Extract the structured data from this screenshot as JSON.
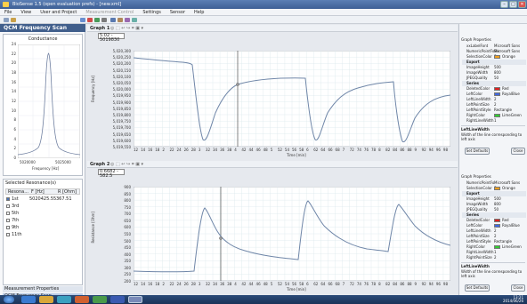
{
  "window": {
    "title": "BioSense 1.5 (open evaluation prefs) - [new.xml]",
    "minimize": "–",
    "maximize": "□",
    "close": "✕"
  },
  "menu": [
    "File",
    "View",
    "User and Project",
    "Measurement Control",
    "Settings",
    "Sensor",
    "Help"
  ],
  "left": {
    "header": "QCM Frequency Scan",
    "conductance_title": "Conductance",
    "cond_x_label": "Frequency [Hz]",
    "cond_x_ticks": [
      "5020000",
      "5025000"
    ],
    "cond_y_ticks": [
      "24",
      "22",
      "20",
      "18",
      "16",
      "14",
      "12",
      "10",
      "8",
      "6",
      "4",
      "2",
      "0"
    ],
    "resonance_title": "Selected Resonance(s)",
    "res_columns": [
      "Resona...",
      "F [Hz]",
      "R [Ohm]"
    ],
    "res_rows": [
      {
        "name": "1st",
        "f": "5020425.55",
        "r": "367.51",
        "checked": true
      },
      {
        "name": "3rd",
        "f": "",
        "r": "",
        "checked": false
      },
      {
        "name": "5th",
        "f": "",
        "r": "",
        "checked": false
      },
      {
        "name": "7th",
        "f": "",
        "r": "",
        "checked": false
      },
      {
        "name": "9th",
        "f": "",
        "r": "",
        "checked": false
      },
      {
        "name": "11th",
        "f": "",
        "r": "",
        "checked": false
      }
    ],
    "measurement_properties": "Measurement Properties",
    "qcm_tab": "QCM Frequency Scan"
  },
  "graph1": {
    "label": "Graph 1",
    "value": "5.02 - 5019830",
    "ylabel": "Frequency [Hz]",
    "xlabel": "Time [min]",
    "yticks": [
      "5,020,300",
      "5,020,250",
      "5,020,200",
      "5,020,150",
      "5,020,100",
      "5,020,050",
      "5,020,000",
      "5,019,950",
      "5,019,900",
      "5,019,850",
      "5,019,800",
      "5,019,750",
      "5,019,700",
      "5,019,650",
      "5,019,600",
      "5,019,550"
    ],
    "xticks": [
      "12",
      "14",
      "16",
      "18",
      "2",
      "22",
      "24",
      "26",
      "28",
      "3",
      "32",
      "34",
      "36",
      "38",
      "4",
      "42",
      "44",
      "46",
      "48",
      "5",
      "52",
      "54",
      "56",
      "58",
      "6",
      "62",
      "64",
      "66",
      "68",
      "7",
      "72",
      "74",
      "76",
      "78",
      "8",
      "82",
      "84",
      "86",
      "88",
      "9",
      "92",
      "94",
      "96",
      "98"
    ]
  },
  "graph2": {
    "label": "Graph 2",
    "value": "0.6682 - 582.5",
    "ylabel": "Resistance [Ohm]",
    "xlabel": "Time [min]",
    "yticks": [
      "900",
      "850",
      "800",
      "750",
      "700",
      "650",
      "600",
      "550",
      "500",
      "450",
      "400",
      "350",
      "300",
      "250",
      "200"
    ],
    "xticks": [
      "12",
      "14",
      "16",
      "18",
      "2",
      "22",
      "24",
      "26",
      "28",
      "3",
      "32",
      "34",
      "36",
      "38",
      "4",
      "42",
      "44",
      "46",
      "48",
      "5",
      "52",
      "54",
      "56",
      "58",
      "6",
      "62",
      "64",
      "66",
      "68",
      "7",
      "72",
      "74",
      "76",
      "78",
      "8",
      "82",
      "84",
      "86",
      "88",
      "9",
      "92",
      "94",
      "96",
      "98"
    ]
  },
  "props1": {
    "title": "Graph Properties",
    "rows": [
      {
        "k": "xxLabelFont",
        "v": "Microsoft Sans Ser"
      },
      {
        "k": "NumericPointFo",
        "v": "Microsoft Sans Ser"
      },
      {
        "k": "SelectionColor",
        "v": "Orange",
        "color": "#f0a020"
      },
      {
        "k": "Export",
        "v": "",
        "section": true
      },
      {
        "k": "ImageHeight",
        "v": "500"
      },
      {
        "k": "ImageWidth",
        "v": "800"
      },
      {
        "k": "JPEGQuality",
        "v": "50"
      },
      {
        "k": "Series",
        "v": "",
        "section": true
      },
      {
        "k": "DeletedColor",
        "v": "Red",
        "color": "#e02020"
      },
      {
        "k": "LeftColor",
        "v": "RoyalBlue",
        "color": "#4169e1"
      },
      {
        "k": "LeftLineWidth",
        "v": "2"
      },
      {
        "k": "LeftPointSize",
        "v": "2"
      },
      {
        "k": "LeftPointStyle",
        "v": "Rectangle"
      },
      {
        "k": "RightColor",
        "v": "LimeGreen",
        "color": "#32cd32"
      },
      {
        "k": "RightLineWidth",
        "v": "1"
      }
    ],
    "desc_title": "LeftLineWidth",
    "desc_text": "Width of the line corresponding to left axis",
    "set_defaults": "Set Defaults",
    "close": "Close"
  },
  "props2": {
    "title": "Graph Properties",
    "rows": [
      {
        "k": "NumericPointFo",
        "v": "Microsoft Sans Ser"
      },
      {
        "k": "SelectionColor",
        "v": "Orange",
        "color": "#f0a020"
      },
      {
        "k": "Export",
        "v": "",
        "section": true
      },
      {
        "k": "ImageHeight",
        "v": "500"
      },
      {
        "k": "ImageWidth",
        "v": "800"
      },
      {
        "k": "JPEGQuality",
        "v": "50"
      },
      {
        "k": "Series",
        "v": "",
        "section": true
      },
      {
        "k": "DeletedColor",
        "v": "Red",
        "color": "#e02020"
      },
      {
        "k": "LeftColor",
        "v": "RoyalBlue",
        "color": "#4169e1"
      },
      {
        "k": "LeftLineWidth",
        "v": "2"
      },
      {
        "k": "LeftPointSize",
        "v": "2"
      },
      {
        "k": "LeftPointStyle",
        "v": "Rectangle"
      },
      {
        "k": "RightColor",
        "v": "LimeGreen",
        "color": "#32cd32"
      },
      {
        "k": "RightLineWidth",
        "v": "1"
      },
      {
        "k": "RightPointSize",
        "v": "2"
      }
    ],
    "desc_title": "LeftLineWidth",
    "desc_text": "Width of the line corresponding to left axis",
    "set_defaults": "Set Defaults",
    "close": "Close"
  },
  "taskbar": {
    "time": "13:21",
    "date": "2014/06/26"
  }
}
